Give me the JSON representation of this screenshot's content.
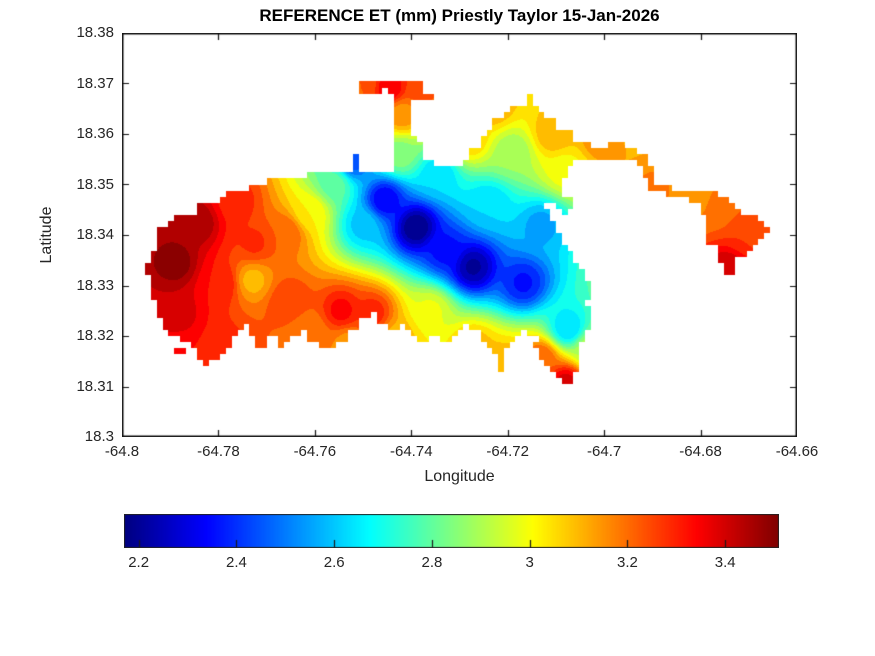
{
  "window": {
    "background": "#ffffff"
  },
  "colors": {
    "background": "#ffffff",
    "axis_text": "#262626",
    "axis_line": "#111111",
    "title_text": "#000000"
  },
  "chart_data": {
    "type": "heatmap",
    "subtype": "filled-contour-map",
    "title": "REFERENCE ET (mm) Priestly Taylor 15-Jan-2026",
    "variable": "REFERENCE ET",
    "units": "mm",
    "method": "Priestly Taylor",
    "date": "15-Jan-2026",
    "xlabel": "Longitude",
    "ylabel": "Latitude",
    "xlim": [
      -64.8,
      -64.66
    ],
    "ylim": [
      18.3,
      18.38
    ],
    "xticks": [
      -64.8,
      -64.78,
      -64.76,
      -64.74,
      -64.72,
      -64.7,
      -64.68,
      -64.66
    ],
    "xtick_labels": [
      "-64.8",
      "-64.78",
      "-64.76",
      "-64.74",
      "-64.72",
      "-64.7",
      "-64.68",
      "-64.66"
    ],
    "yticks": [
      18.38,
      18.37,
      18.36,
      18.35,
      18.34,
      18.33,
      18.32,
      18.31,
      18.3
    ],
    "ytick_labels": [
      "18.38",
      "18.37",
      "18.36",
      "18.35",
      "18.34",
      "18.33",
      "18.32",
      "18.31",
      "18.3"
    ],
    "grid": false,
    "colormap": "jet",
    "clim": [
      2.17,
      3.51
    ],
    "contour_interval": 0.05,
    "colorbar": {
      "orientation": "horizontal",
      "position": "bottom",
      "ticks": [
        2.2,
        2.4,
        2.6,
        2.8,
        3,
        3.2,
        3.4
      ],
      "tick_labels": [
        "2.2",
        "2.4",
        "2.6",
        "2.8",
        "3",
        "3.2",
        "3.4"
      ]
    },
    "grid_resolution_deg": 0.0012,
    "field_control_points": [
      [
        -64.789,
        18.3345,
        3.5
      ],
      [
        -64.7845,
        18.3425,
        3.47
      ],
      [
        -64.7895,
        18.3245,
        3.42
      ],
      [
        -64.7795,
        18.3305,
        3.32
      ],
      [
        -64.7765,
        18.3465,
        3.3
      ],
      [
        -64.7725,
        18.3385,
        3.28
      ],
      [
        -64.7729,
        18.331,
        3.1
      ],
      [
        -64.779,
        18.317,
        3.3
      ],
      [
        -64.7897,
        18.317,
        3.32
      ],
      [
        -64.766,
        18.3405,
        3.22
      ],
      [
        -64.7655,
        18.327,
        3.27
      ],
      [
        -64.7545,
        18.325,
        3.34
      ],
      [
        -64.748,
        18.3245,
        3.3
      ],
      [
        -64.761,
        18.3445,
        3.02
      ],
      [
        -64.756,
        18.35,
        2.8
      ],
      [
        -64.752,
        18.3545,
        2.45
      ],
      [
        -64.739,
        18.3415,
        2.17
      ],
      [
        -64.7455,
        18.347,
        2.32
      ],
      [
        -64.75,
        18.342,
        2.6
      ],
      [
        -64.7272,
        18.3337,
        2.21
      ],
      [
        -64.7168,
        18.3305,
        2.36
      ],
      [
        -64.733,
        18.337,
        2.35
      ],
      [
        -64.713,
        18.342,
        2.55
      ],
      [
        -64.724,
        18.346,
        2.62
      ],
      [
        -64.7345,
        18.352,
        2.62
      ],
      [
        -64.7075,
        18.3215,
        2.62
      ],
      [
        -64.743,
        18.3195,
        3.1
      ],
      [
        -64.753,
        18.3185,
        3.15
      ],
      [
        -64.761,
        18.321,
        3.18
      ],
      [
        -64.736,
        18.325,
        2.98
      ],
      [
        -64.727,
        18.318,
        3.1
      ],
      [
        -64.7216,
        18.314,
        3.12
      ],
      [
        -64.713,
        18.3155,
        3.22
      ],
      [
        -64.708,
        18.3105,
        3.4
      ],
      [
        -64.703,
        18.3175,
        2.9
      ],
      [
        -64.7424,
        18.356,
        2.85
      ],
      [
        -64.742,
        18.364,
        3.15
      ],
      [
        -64.7445,
        18.369,
        3.37
      ],
      [
        -64.75,
        18.3695,
        3.22
      ],
      [
        -64.738,
        18.369,
        3.25
      ],
      [
        -64.728,
        18.359,
        3.08
      ],
      [
        -64.719,
        18.3565,
        2.88
      ],
      [
        -64.723,
        18.3655,
        3.12
      ],
      [
        -64.7105,
        18.36,
        3.12
      ],
      [
        -64.7005,
        18.359,
        3.17
      ],
      [
        -64.695,
        18.364,
        3.05
      ],
      [
        -64.708,
        18.353,
        3.0
      ],
      [
        -64.69,
        18.349,
        3.18
      ],
      [
        -64.681,
        18.348,
        3.15
      ],
      [
        -64.676,
        18.346,
        3.18
      ],
      [
        -64.67,
        18.3405,
        3.27
      ],
      [
        -64.6745,
        18.333,
        3.42
      ],
      [
        -64.666,
        18.342,
        3.22
      ]
    ],
    "island_polygons": [
      [
        [
          -64.7942,
          18.3305
        ],
        [
          -64.7948,
          18.3335
        ],
        [
          -64.7936,
          18.3366
        ],
        [
          -64.7925,
          18.3384
        ],
        [
          -64.7927,
          18.341
        ],
        [
          -64.79,
          18.3414
        ],
        [
          -64.7896,
          18.3434
        ],
        [
          -64.7846,
          18.3438
        ],
        [
          -64.7842,
          18.3461
        ],
        [
          -64.7793,
          18.3463
        ],
        [
          -64.7788,
          18.3485
        ],
        [
          -64.7741,
          18.3489
        ],
        [
          -64.7735,
          18.3503
        ],
        [
          -64.7693,
          18.3507
        ],
        [
          -64.7631,
          18.3517
        ],
        [
          -64.7548,
          18.3521
        ],
        [
          -64.7519,
          18.3525
        ],
        [
          -64.7519,
          18.3556
        ],
        [
          -64.7506,
          18.3556
        ],
        [
          -64.7506,
          18.3525
        ],
        [
          -64.7434,
          18.3529
        ],
        [
          -64.7434,
          18.3671
        ],
        [
          -64.7444,
          18.3675
        ],
        [
          -64.7448,
          18.3687
        ],
        [
          -64.7502,
          18.3683
        ],
        [
          -64.7506,
          18.3699
        ],
        [
          -64.7465,
          18.3707
        ],
        [
          -64.7382,
          18.3703
        ],
        [
          -64.7376,
          18.3687
        ],
        [
          -64.7357,
          18.3683
        ],
        [
          -64.7353,
          18.3667
        ],
        [
          -64.7399,
          18.3669
        ],
        [
          -64.7403,
          18.3644
        ],
        [
          -64.7399,
          18.3598
        ],
        [
          -64.7382,
          18.3586
        ],
        [
          -64.7378,
          18.3558
        ],
        [
          -64.7361,
          18.3547
        ],
        [
          -64.734,
          18.3537
        ],
        [
          -64.7309,
          18.3533
        ],
        [
          -64.7289,
          18.3547
        ],
        [
          -64.7278,
          18.3566
        ],
        [
          -64.7262,
          18.3572
        ],
        [
          -64.7257,
          18.359
        ],
        [
          -64.7237,
          18.3606
        ],
        [
          -64.7233,
          18.3626
        ],
        [
          -64.7206,
          18.3636
        ],
        [
          -64.7199,
          18.3655
        ],
        [
          -64.7164,
          18.3659
        ],
        [
          -64.7158,
          18.3675
        ],
        [
          -64.7148,
          18.3673
        ],
        [
          -64.7152,
          18.3655
        ],
        [
          -64.7133,
          18.3646
        ],
        [
          -64.7123,
          18.363
        ],
        [
          -64.7098,
          18.363
        ],
        [
          -64.7092,
          18.3606
        ],
        [
          -64.7067,
          18.3602
        ],
        [
          -64.706,
          18.3586
        ],
        [
          -64.7029,
          18.3588
        ],
        [
          -64.7025,
          18.357
        ],
        [
          -64.6988,
          18.3572
        ],
        [
          -64.6984,
          18.3586
        ],
        [
          -64.6963,
          18.3588
        ],
        [
          -64.6957,
          18.3572
        ],
        [
          -64.694,
          18.357
        ],
        [
          -64.6926,
          18.3566
        ],
        [
          -64.6913,
          18.356
        ],
        [
          -64.6909,
          18.3545
        ],
        [
          -64.6903,
          18.3533
        ],
        [
          -64.6897,
          18.3521
        ],
        [
          -64.689,
          18.3505
        ],
        [
          -64.6868,
          18.3497
        ],
        [
          -64.6843,
          18.3489
        ],
        [
          -64.6816,
          18.3491
        ],
        [
          -64.6801,
          18.3487
        ],
        [
          -64.6789,
          18.3493
        ],
        [
          -64.6772,
          18.3489
        ],
        [
          -64.6768,
          18.3477
        ],
        [
          -64.6745,
          18.3477
        ],
        [
          -64.6741,
          18.3461
        ],
        [
          -64.672,
          18.3457
        ],
        [
          -64.6716,
          18.3442
        ],
        [
          -64.6683,
          18.3438
        ],
        [
          -64.6679,
          18.3424
        ],
        [
          -64.6652,
          18.342
        ],
        [
          -64.665,
          18.3406
        ],
        [
          -64.6668,
          18.3402
        ],
        [
          -64.6673,
          18.3388
        ],
        [
          -64.6695,
          18.3384
        ],
        [
          -64.67,
          18.3362
        ],
        [
          -64.6722,
          18.3358
        ],
        [
          -64.6726,
          18.3343
        ],
        [
          -64.6733,
          18.3317
        ],
        [
          -64.6745,
          18.3313
        ],
        [
          -64.6751,
          18.3339
        ],
        [
          -64.6762,
          18.3356
        ],
        [
          -64.6766,
          18.3376
        ],
        [
          -64.6783,
          18.3382
        ],
        [
          -64.6787,
          18.3398
        ],
        [
          -64.6791,
          18.3418
        ],
        [
          -64.6795,
          18.3442
        ],
        [
          -64.6803,
          18.3457
        ],
        [
          -64.6826,
          18.3469
        ],
        [
          -64.6851,
          18.3477
        ],
        [
          -64.6876,
          18.3485
        ],
        [
          -64.689,
          18.3489
        ],
        [
          -64.6905,
          18.3493
        ],
        [
          -64.6913,
          18.3505
        ],
        [
          -64.6919,
          18.3521
        ],
        [
          -64.6924,
          18.3537
        ],
        [
          -64.6932,
          18.3545
        ],
        [
          -64.6957,
          18.3545
        ],
        [
          -64.6988,
          18.3545
        ],
        [
          -64.7019,
          18.3545
        ],
        [
          -64.705,
          18.3545
        ],
        [
          -64.7067,
          18.3541
        ],
        [
          -64.7075,
          18.3525
        ],
        [
          -64.7087,
          18.3509
        ],
        [
          -64.7094,
          18.3489
        ],
        [
          -64.7083,
          18.3477
        ],
        [
          -64.7067,
          18.3473
        ],
        [
          -64.7056,
          18.3463
        ],
        [
          -64.7065,
          18.3448
        ],
        [
          -64.7081,
          18.3442
        ],
        [
          -64.7094,
          18.3448
        ],
        [
          -64.71,
          18.3465
        ],
        [
          -64.7112,
          18.3469
        ],
        [
          -64.7121,
          18.3455
        ],
        [
          -64.7114,
          18.3436
        ],
        [
          -64.7104,
          18.3422
        ],
        [
          -64.7094,
          18.3406
        ],
        [
          -64.7083,
          18.3386
        ],
        [
          -64.7073,
          18.337
        ],
        [
          -64.7062,
          18.3356
        ],
        [
          -64.7054,
          18.3343
        ],
        [
          -64.7046,
          18.3327
        ],
        [
          -64.7038,
          18.3311
        ],
        [
          -64.7029,
          18.3295
        ],
        [
          -64.7025,
          18.3279
        ],
        [
          -64.7036,
          18.3267
        ],
        [
          -64.7031,
          18.3248
        ],
        [
          -64.7023,
          18.3232
        ],
        [
          -64.7029,
          18.3216
        ],
        [
          -64.704,
          18.32
        ],
        [
          -64.705,
          18.318
        ],
        [
          -64.7056,
          18.316
        ],
        [
          -64.7048,
          18.3148
        ],
        [
          -64.7056,
          18.3133
        ],
        [
          -64.7067,
          18.3113
        ],
        [
          -64.7077,
          18.3095
        ],
        [
          -64.7089,
          18.3111
        ],
        [
          -64.71,
          18.3129
        ],
        [
          -64.7116,
          18.3135
        ],
        [
          -64.7123,
          18.3151
        ],
        [
          -64.7135,
          18.3156
        ],
        [
          -64.7131,
          18.3174
        ],
        [
          -64.7143,
          18.3178
        ],
        [
          -64.7139,
          18.3194
        ],
        [
          -64.7156,
          18.3198
        ],
        [
          -64.7152,
          18.3214
        ],
        [
          -64.7168,
          18.3218
        ],
        [
          -64.7172,
          18.3202
        ],
        [
          -64.7189,
          18.3198
        ],
        [
          -64.7193,
          18.3178
        ],
        [
          -64.7208,
          18.317
        ],
        [
          -64.7204,
          18.3127
        ],
        [
          -64.7218,
          18.3123
        ],
        [
          -64.7222,
          18.3166
        ],
        [
          -64.7237,
          18.317
        ],
        [
          -64.7241,
          18.319
        ],
        [
          -64.7255,
          18.3194
        ],
        [
          -64.726,
          18.321
        ],
        [
          -64.728,
          18.3206
        ],
        [
          -64.7284,
          18.3222
        ],
        [
          -64.7297,
          18.3218
        ],
        [
          -64.7301,
          18.3202
        ],
        [
          -64.7318,
          18.3198
        ],
        [
          -64.7322,
          18.3184
        ],
        [
          -64.7336,
          18.3188
        ],
        [
          -64.7343,
          18.3206
        ],
        [
          -64.7363,
          18.3202
        ],
        [
          -64.7367,
          18.319
        ],
        [
          -64.7384,
          18.3186
        ],
        [
          -64.7388,
          18.3202
        ],
        [
          -64.7405,
          18.3206
        ],
        [
          -64.7409,
          18.3226
        ],
        [
          -64.7425,
          18.323
        ],
        [
          -64.743,
          18.321
        ],
        [
          -64.7446,
          18.3206
        ],
        [
          -64.745,
          18.3222
        ],
        [
          -64.7467,
          18.3226
        ],
        [
          -64.7471,
          18.3246
        ],
        [
          -64.7488,
          18.3249
        ],
        [
          -64.7492,
          18.3234
        ],
        [
          -64.7508,
          18.323
        ],
        [
          -64.7513,
          18.321
        ],
        [
          -64.7529,
          18.3206
        ],
        [
          -64.7533,
          18.319
        ],
        [
          -64.755,
          18.3186
        ],
        [
          -64.7554,
          18.3174
        ],
        [
          -64.7591,
          18.3174
        ],
        [
          -64.7596,
          18.319
        ],
        [
          -64.7612,
          18.3194
        ],
        [
          -64.7616,
          18.3214
        ],
        [
          -64.7627,
          18.3218
        ],
        [
          -64.7633,
          18.3202
        ],
        [
          -64.7654,
          18.3198
        ],
        [
          -64.7658,
          18.3182
        ],
        [
          -64.7674,
          18.3178
        ],
        [
          -64.7679,
          18.3198
        ],
        [
          -64.7695,
          18.3194
        ],
        [
          -64.771,
          18.3176
        ],
        [
          -64.7724,
          18.3182
        ],
        [
          -64.773,
          18.3206
        ],
        [
          -64.7735,
          18.3224
        ],
        [
          -64.7749,
          18.3212
        ],
        [
          -64.7772,
          18.3188
        ],
        [
          -64.7795,
          18.3162
        ],
        [
          -64.782,
          18.3141
        ],
        [
          -64.784,
          18.3151
        ],
        [
          -64.7851,
          18.3174
        ],
        [
          -64.7871,
          18.319
        ],
        [
          -64.7903,
          18.3206
        ],
        [
          -64.7919,
          18.3222
        ],
        [
          -64.7929,
          18.3253
        ],
        [
          -64.7938,
          18.3279
        ]
      ],
      [
        [
          -64.7896,
          18.3174
        ],
        [
          -64.7871,
          18.3174
        ],
        [
          -64.7871,
          18.3166
        ],
        [
          -64.7896,
          18.3166
        ]
      ]
    ]
  }
}
